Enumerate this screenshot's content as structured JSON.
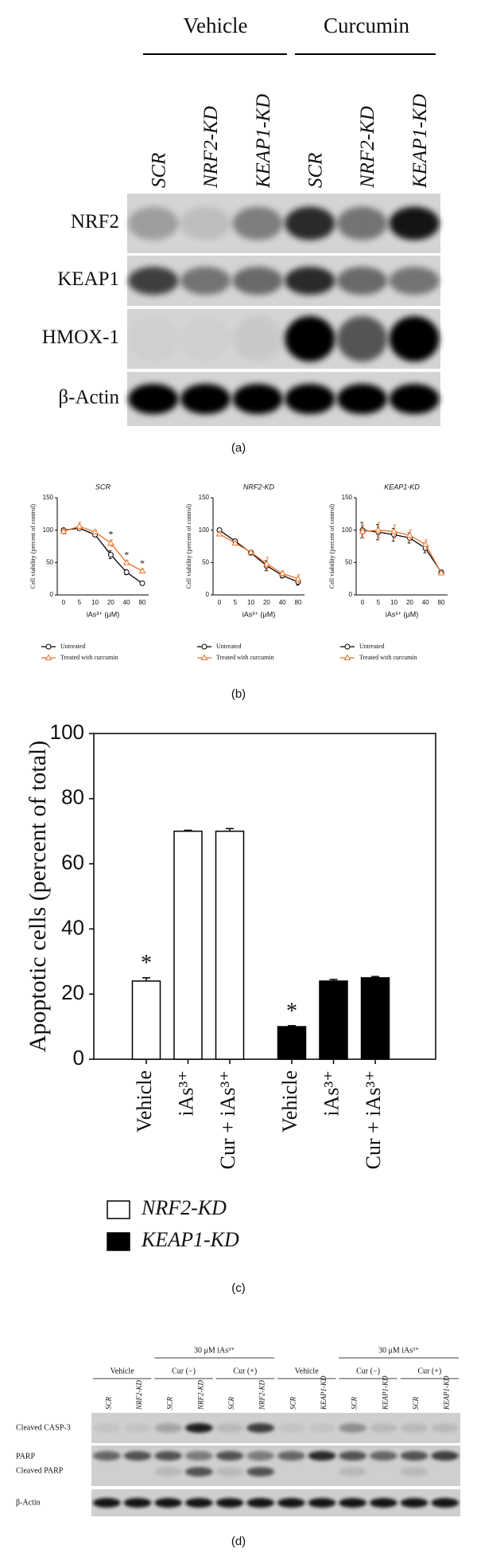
{
  "panel_labels": [
    "(a)",
    "(b)",
    "(c)",
    "(d)"
  ],
  "blot_a": {
    "groups": [
      "Vehicle",
      "Curcumin"
    ],
    "lanes": [
      "SCR",
      "NRF2-KD",
      "KEAP1-KD",
      "SCR",
      "NRF2-KD",
      "KEAP1-KD"
    ],
    "rows": [
      "NRF2",
      "KEAP1",
      "HMOX-1",
      "β-Actin"
    ]
  },
  "chart_data": [
    {
      "type": "line",
      "title": "SCR",
      "x_label": "iAs³⁺ (μM)",
      "y_label": "Cell viability (percent of control)",
      "categories": [
        "0",
        "5",
        "10",
        "20",
        "40",
        "80"
      ],
      "ylim": [
        0,
        150
      ],
      "yticks": [
        0,
        50,
        100,
        150
      ],
      "series": [
        {
          "name": "Untreated",
          "color": "#000000",
          "marker": "circle",
          "values": [
            100,
            103,
            93,
            62,
            35,
            18
          ],
          "errors": [
            3,
            3,
            3,
            6,
            4,
            2
          ]
        },
        {
          "name": "Treated with curcumin",
          "color": "#e8702a",
          "marker": "triangle",
          "values": [
            98,
            106,
            97,
            80,
            50,
            37
          ],
          "errors": [
            4,
            6,
            3,
            5,
            3,
            3
          ],
          "annotations": [
            null,
            null,
            null,
            "*",
            "*",
            "*"
          ]
        }
      ]
    },
    {
      "type": "line",
      "title": "NRF2-KD",
      "x_label": "iAs³⁺ (μM)",
      "y_label": "Cell viability (percent of control)",
      "categories": [
        "0",
        "5",
        "10",
        "20",
        "40",
        "80"
      ],
      "ylim": [
        0,
        150
      ],
      "yticks": [
        0,
        50,
        100,
        150
      ],
      "series": [
        {
          "name": "Untreated",
          "color": "#000000",
          "marker": "circle",
          "values": [
            100,
            83,
            65,
            45,
            30,
            20
          ],
          "errors": [
            3,
            3,
            3,
            8,
            4,
            5
          ]
        },
        {
          "name": "Treated with curcumin",
          "color": "#e8702a",
          "marker": "triangle",
          "values": [
            94,
            80,
            66,
            48,
            33,
            25
          ],
          "errors": [
            3,
            3,
            3,
            10,
            4,
            6
          ]
        }
      ]
    },
    {
      "type": "line",
      "title": "KEAP1-KD",
      "x_label": "iAs³⁺ (μM)",
      "y_label": "Cell viability (percent of control)",
      "categories": [
        "0",
        "5",
        "10",
        "20",
        "40",
        "80"
      ],
      "ylim": [
        0,
        150
      ],
      "yticks": [
        0,
        50,
        100,
        150
      ],
      "series": [
        {
          "name": "Untreated",
          "color": "#000000",
          "marker": "circle",
          "values": [
            100,
            97,
            93,
            88,
            72,
            35
          ],
          "errors": [
            12,
            12,
            10,
            8,
            7,
            2
          ]
        },
        {
          "name": "Treated with curcumin",
          "color": "#e8702a",
          "marker": "triangle",
          "values": [
            98,
            100,
            98,
            92,
            78,
            34
          ],
          "errors": [
            10,
            12,
            10,
            8,
            7,
            2
          ]
        }
      ]
    },
    {
      "type": "bar",
      "y_label": "Apoptotic cells (percent of total)",
      "categories": [
        "Vehicle",
        "iAs³⁺",
        "Cur + iAs³⁺"
      ],
      "ylim": [
        0,
        100
      ],
      "yticks": [
        0,
        20,
        40,
        60,
        80,
        100
      ],
      "series": [
        {
          "name": "NRF2-KD",
          "color": "#ffffff",
          "values": [
            24,
            70,
            70
          ],
          "errors": [
            1,
            0.3,
            0.8
          ],
          "annotations": [
            "*",
            null,
            null
          ]
        },
        {
          "name": "KEAP1-KD",
          "color": "#000000",
          "values": [
            10,
            24,
            25
          ],
          "errors": [
            0.3,
            0.5,
            0.4
          ],
          "annotations": [
            "*",
            null,
            null
          ]
        }
      ]
    }
  ],
  "blot_d": {
    "vehicle": "Vehicle",
    "treatment": "30 μM iAs³⁺",
    "cur_minus": "Cur (−)",
    "cur_plus": "Cur (+)",
    "lanes": [
      "SCR",
      "NRF2-KD",
      "SCR",
      "NRF2-KD",
      "SCR",
      "NRF2-KD",
      "SCR",
      "KEAP1-KD",
      "SCR",
      "KEAP1-KD",
      "SCR",
      "KEAP1-KD"
    ],
    "rows": [
      "Cleaved CASP-3",
      "PARP",
      "Cleaved PARP",
      "β-Actin"
    ]
  }
}
